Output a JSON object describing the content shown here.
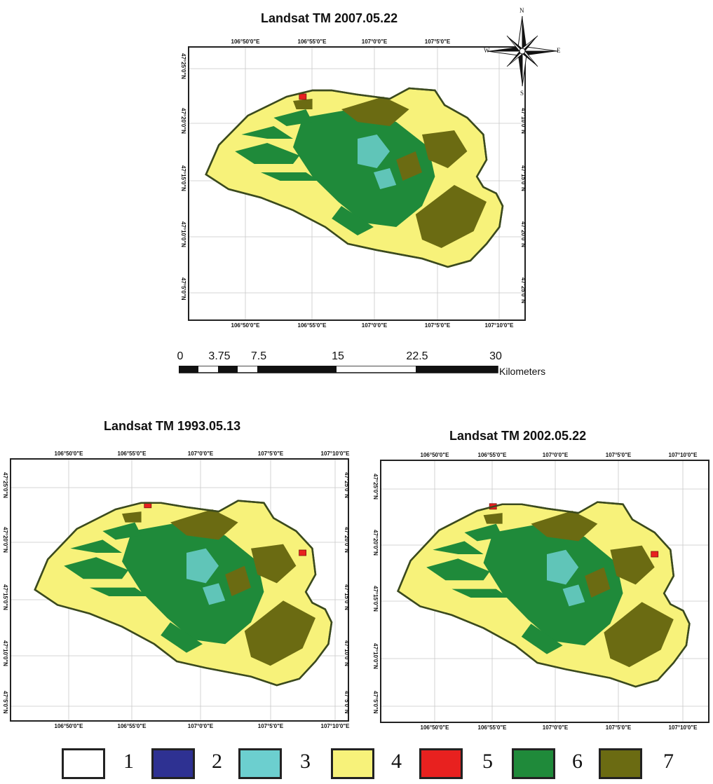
{
  "maps": {
    "top": {
      "title": "Landsat TM 2007.05.22",
      "lon_top": [
        "106°50'0\"E",
        "106°55'0\"E",
        "107°0'0\"E",
        "107°5'0\"E"
      ],
      "lon_bottom": [
        "106°50'0\"E",
        "106°55'0\"E",
        "107°0'0\"E",
        "107°5'0\"E",
        "107°10'0\"E"
      ],
      "lat_left": [
        "47°5'0\"N",
        "47°10'0\"N",
        "47°15'0\"N",
        "47°20'0\"N",
        "47°25'0\"N"
      ],
      "lat_right": [
        "47°25'0\"N",
        "47°20'0\"N",
        "47°15'0\"N",
        "47°10'0\"N"
      ]
    },
    "left": {
      "title": "Landsat TM 1993.05.13",
      "lon_top": [
        "106°50'0\"E",
        "106°55'0\"E",
        "107°0'0\"E",
        "107°5'0\"E",
        "107°10'0\"E"
      ],
      "lon_bottom": [
        "106°50'0\"E",
        "106°55'0\"E",
        "107°0'0\"E",
        "107°5'0\"E",
        "107°10'0\"E"
      ],
      "lat_left": [
        "47°5'0\"N",
        "47°10'0\"N",
        "47°15'0\"N",
        "47°20'0\"N",
        "47°25'0\"N"
      ],
      "lat_right": [
        "47°5'0\"N",
        "47°10'0\"N",
        "47°15'0\"N",
        "47°20'0\"N",
        "47°25'0\"N"
      ]
    },
    "right": {
      "title": "Landsat TM 2002.05.22",
      "lon_top": [
        "106°50'0\"E",
        "106°55'0\"E",
        "107°0'0\"E",
        "107°5'0\"E",
        "107°10'0\"E"
      ],
      "lon_bottom": [
        "106°50'0\"E",
        "106°55'0\"E",
        "107°0'0\"E",
        "107°5'0\"E",
        "107°10'0\"E"
      ],
      "lat_left": [
        "47°5'0\"N",
        "47°10'0\"N",
        "47°15'0\"N",
        "47°20'0\"N",
        "47°25'0\"N"
      ]
    }
  },
  "compass": {
    "n": "N",
    "s": "S",
    "e": "E",
    "w": "W"
  },
  "scale_bar": {
    "ticks": [
      "0",
      "3.75",
      "7.5",
      "15",
      "22.5",
      "30"
    ],
    "unit": "Kilometers"
  },
  "legend": [
    {
      "label": "1",
      "color": "#ffffff"
    },
    {
      "label": "2",
      "color": "#2e3192"
    },
    {
      "label": "3",
      "color": "#6ccfcf"
    },
    {
      "label": "4",
      "color": "#f7f27a"
    },
    {
      "label": "5",
      "color": "#e8211f"
    },
    {
      "label": "6",
      "color": "#1f8a3a"
    },
    {
      "label": "7",
      "color": "#6b6b12"
    }
  ],
  "colors": {
    "outline": "#3b4a1e",
    "steppe": "#f7f27a",
    "forest": "#1f8a3a",
    "shrub": "#6b6b12",
    "alpine": "#6ccfcf",
    "urban": "#e8211f"
  }
}
